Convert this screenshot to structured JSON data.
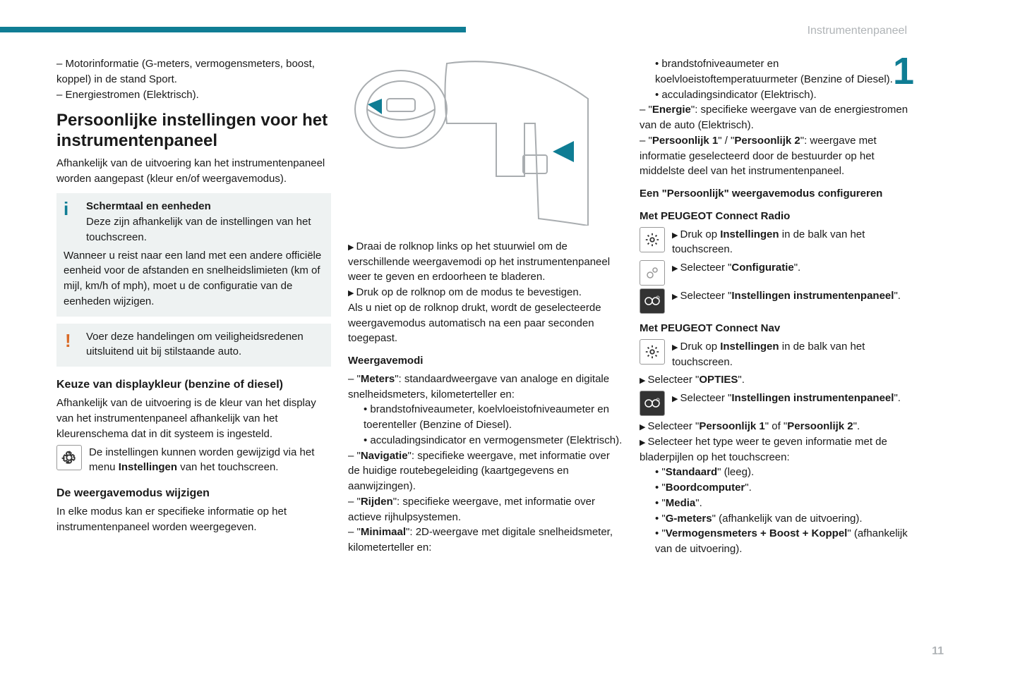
{
  "header": {
    "section_title": "Instrumentenpaneel",
    "chapter_number": "1",
    "page_number": "11",
    "bar_color": "#0f7d94"
  },
  "col1": {
    "intro_items": [
      "Motorinformatie (G-meters, vermogensmeters, boost, koppel) in de stand Sport.",
      "Energiestromen (Elektrisch)."
    ],
    "h2": "Persoonlijke instellingen voor het instrumentenpaneel",
    "h2_sub": "Afhankelijk van de uitvoering kan het instrumentenpaneel worden aangepast (kleur en/of weergavemodus).",
    "info_box": {
      "title": "Schermtaal en eenheden",
      "p1": "Deze zijn afhankelijk van de instellingen van het touchscreen.",
      "p2": "Wanneer u reist naar een land met een andere officiële eenheid voor de afstanden en snelheidslimieten (km of mijl, km/h of mph), moet u de configuratie van de eenheden wijzigen."
    },
    "warn_box": {
      "text": "Voer deze handelingen om veiligheidsredenen uitsluitend uit bij stilstaande auto."
    },
    "h3a": "Keuze van displaykleur (benzine of diesel)",
    "h3a_sub": "Afhankelijk van de uitvoering is de kleur van het display van het instrumentenpaneel afhankelijk van het kleurenschema dat in dit systeem is ingesteld.",
    "icon_row1_pre": "De instellingen kunnen worden gewijzigd via het menu ",
    "icon_row1_bold": "Instellingen",
    "icon_row1_post": " van het touchscreen.",
    "h3b": "De weergavemodus wijzigen",
    "h3b_sub": "In elke modus kan er specifieke informatie op het instrumentenpaneel worden weergegeven."
  },
  "col2": {
    "steps": [
      "Draai de rolknop links op het stuurwiel om de verschillende weergavemodi op het instrumentenpaneel weer te geven en erdoorheen te bladeren.",
      "Druk op de rolknop om de modus te bevestigen."
    ],
    "step_note": "Als u niet op de rolknop drukt, wordt de geselecteerde weergavemodus automatisch na een paar seconden toegepast.",
    "h4": "Weergavemodi",
    "modes": {
      "meters_label": "Meters",
      "meters_text": ": standaardweergave van analoge en digitale snelheidsmeters, kilometerteller en:",
      "meters_sub": [
        "brandstofniveaumeter, koelvloeistofniveaumeter en toerenteller (Benzine of Diesel).",
        "acculadingsindicator en vermogensmeter (Elektrisch)."
      ],
      "nav_label": "Navigatie",
      "nav_text": ": specifieke weergave, met informatie over de huidige routebegeleiding (kaartgegevens en aanwijzingen).",
      "rijden_label": "Rijden",
      "rijden_text": ": specifieke weergave, met informatie over actieve rijhulpsystemen.",
      "min_label": "Minimaal",
      "min_text": ": 2D-weergave met digitale snelheidsmeter, kilometerteller en:"
    }
  },
  "col3": {
    "top_sub": [
      "brandstofniveaumeter en koelvloeistoftemperatuurmeter (Benzine of Diesel).",
      "acculadingsindicator (Elektrisch)."
    ],
    "energie_label": "Energie",
    "energie_text": ": specifieke weergave van de energiestromen van de auto (Elektrisch).",
    "pers_label1": "Persoonlijk 1",
    "pers_label2": "Persoonlijk 2",
    "pers_text": ": weergave met informatie geselecteerd door de bestuurder op het middelste deel van het instrumentenpaneel.",
    "h4a": "Een \"Persoonlijk\" weergavemodus configureren",
    "h4b": "Met PEUGEOT Connect Radio",
    "radio_step1_pre": "Druk op ",
    "radio_step1_bold": "Instellingen",
    "radio_step1_post": " in de balk van het touchscreen.",
    "radio_step2_pre": "Selecteer \"",
    "radio_step2_bold": "Configuratie",
    "radio_step2_post": "\".",
    "radio_step3_pre": "Selecteer \"",
    "radio_step3_bold": "Instellingen instrumentenpaneel",
    "radio_step3_post": "\".",
    "h4c": "Met PEUGEOT Connect Nav",
    "nav_step1_pre": "Druk op ",
    "nav_step1_bold": "Instellingen",
    "nav_step1_post": " in de balk van het touchscreen.",
    "nav_step2_pre": "Selecteer \"",
    "nav_step2_bold": "OPTIES",
    "nav_step2_post": "\".",
    "nav_step3_pre": "Selecteer \"",
    "nav_step3_bold": "Instellingen instrumentenpaneel",
    "nav_step3_post": "\".",
    "nav_step4_pre": "Selecteer \"",
    "nav_step4_b1": "Persoonlijk 1",
    "nav_step4_mid": "\" of \"",
    "nav_step4_b2": "Persoonlijk 2",
    "nav_step4_post": "\".",
    "nav_step5": "Selecteer het type weer te geven informatie met de bladerpijlen op het touchscreen:",
    "options": [
      {
        "bold": "Standaard",
        "suffix": " (leeg)."
      },
      {
        "bold": "Boordcomputer",
        "suffix": "."
      },
      {
        "bold": "Media",
        "suffix": "."
      },
      {
        "bold": "G-meters",
        "suffix": " (afhankelijk van de uitvoering)."
      },
      {
        "bold": "Vermogensmeters + Boost + Koppel",
        "suffix": " (afhankelijk van de uitvoering)."
      }
    ]
  },
  "diagram": {
    "stroke": "#a9adb0",
    "accent": "#0f7d94",
    "bg": "#ffffff"
  }
}
